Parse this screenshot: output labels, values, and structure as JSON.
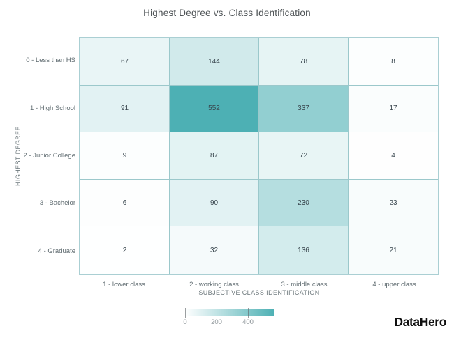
{
  "page": {
    "background": "#ffffff"
  },
  "chart_data": {
    "type": "heatmap",
    "title": "Highest Degree vs. Class Identification",
    "xlabel": "SUBJECTIVE CLASS IDENTIFICATION",
    "ylabel": "HIGHEST DEGREE",
    "x_categories": [
      "1 - lower class",
      "2 - working class",
      "3 - middle class",
      "4 - upper class"
    ],
    "y_categories": [
      "0 - Less than HS",
      "1 - High School",
      "2 - Junior College",
      "3 - Bachelor",
      "4 - Graduate"
    ],
    "values": [
      [
        67,
        144,
        78,
        8
      ],
      [
        91,
        552,
        337,
        17
      ],
      [
        9,
        87,
        72,
        4
      ],
      [
        6,
        90,
        230,
        23
      ],
      [
        2,
        32,
        136,
        21
      ]
    ],
    "color_scale": {
      "min": 0,
      "max": 552,
      "min_color": "#ffffff",
      "max_color": "#4db0b4",
      "tick_values": [
        0,
        200,
        400
      ],
      "tick_labels": [
        "0",
        "200",
        "400"
      ]
    },
    "grid_color": "#9bc8cb",
    "outer_border_color": "#aacfd3",
    "legend_position": "bottom-center",
    "grid": "on"
  },
  "branding": {
    "logo_text": "DataHero",
    "color": "#101010"
  }
}
